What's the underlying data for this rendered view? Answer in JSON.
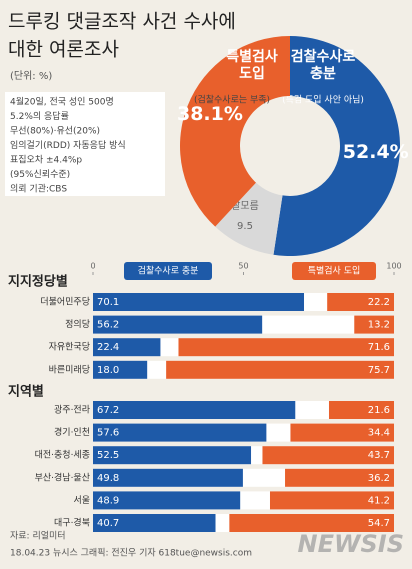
{
  "title": [
    "드루킹 댓글조작 사건 수사에",
    "대한 여론조사"
  ],
  "unit": "(단위: %)",
  "notes": [
    "4월20일, 전국 성인 500명",
    "5.2%의 응답률",
    "무선(80%)·유선(20%)",
    "임의걸기(RDD) 자동응답 방식",
    "표집오차 ±4.4%p",
    "(95%신뢰수준)",
    "의뢰 기관:CBS"
  ],
  "source": "자료: 리얼미터",
  "credit": "18.04.23 뉴시스 그래픽: 전진우 기자 618tue@newsis.com",
  "watermark": "NEWSIS",
  "chart_data": [
    {
      "type": "pie",
      "categories": [
        "검찰수사로 충분",
        "잘모름",
        "특별검사 도입"
      ],
      "sublabels": [
        "(특검 도입 사안 아님)",
        null,
        "(검찰수사로는 부족)"
      ],
      "values": [
        52.4,
        9.5,
        38.1
      ],
      "value_labels": [
        "52.4%",
        "9.5",
        "38.1%"
      ],
      "colors": [
        "#1e5aa8",
        "#d9d9d9",
        "#e8602c"
      ]
    },
    {
      "type": "bar",
      "title": "지지정당별",
      "categories": [
        "더불어민주당",
        "정의당",
        "자유한국당",
        "바른미래당"
      ],
      "series": [
        {
          "name": "검찰수사로 충분",
          "color": "#1e5aa8",
          "values": [
            70.1,
            56.2,
            22.4,
            18.0
          ],
          "value_labels": [
            "70.1",
            "56.2",
            "22.4",
            "18.0"
          ]
        },
        {
          "name": "특별검사 도입",
          "color": "#e8602c",
          "values": [
            22.2,
            13.2,
            71.6,
            75.7
          ]
        }
      ],
      "xlim": [
        0,
        100
      ],
      "xticks": [
        0,
        50,
        100
      ]
    },
    {
      "type": "bar",
      "title": "지역별",
      "categories": [
        "광주·전라",
        "경기·인천",
        "대전·충청·세종",
        "부산·경남·울산",
        "서울",
        "대구·경북"
      ],
      "series": [
        {
          "name": "검찰수사로 충분",
          "color": "#1e5aa8",
          "values": [
            67.2,
            57.6,
            52.5,
            49.8,
            48.9,
            40.7
          ]
        },
        {
          "name": "특별검사 도입",
          "color": "#e8602c",
          "values": [
            21.6,
            34.4,
            43.7,
            36.2,
            41.2,
            54.7
          ]
        }
      ],
      "xlim": [
        0,
        100
      ]
    }
  ]
}
